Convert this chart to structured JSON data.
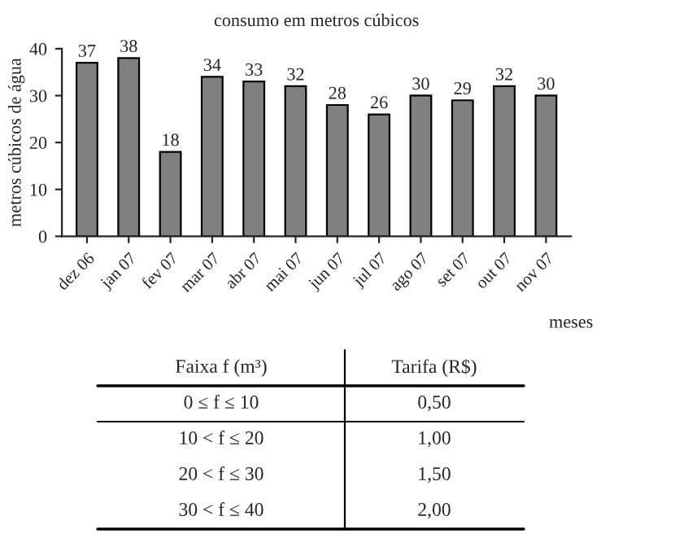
{
  "chart_data": {
    "type": "bar",
    "title": "consumo em metros cúbicos",
    "xlabel": "meses",
    "ylabel": "metros cúbicos de água",
    "categories": [
      "dez 06",
      "jan 07",
      "fev 07",
      "mar 07",
      "abr 07",
      "mai 07",
      "jun 07",
      "jul 07",
      "ago 07",
      "set 07",
      "out 07",
      "nov 07"
    ],
    "values": [
      37,
      38,
      18,
      34,
      33,
      32,
      28,
      26,
      30,
      29,
      32,
      30
    ],
    "color": "#808080",
    "ylim": [
      0,
      40
    ],
    "yticks": [
      0,
      10,
      20,
      30,
      40
    ],
    "grid": false,
    "data_labels": true,
    "annotations": [
      "Faixa f (m³)",
      "Tarifa (R$)",
      "0 ≤ f ≤ 10",
      "0,50",
      "10 < f ≤ 20",
      "1,00",
      "20 < f ≤ 30",
      "1,50",
      "30 < f ≤ 40",
      "2,00"
    ]
  }
}
